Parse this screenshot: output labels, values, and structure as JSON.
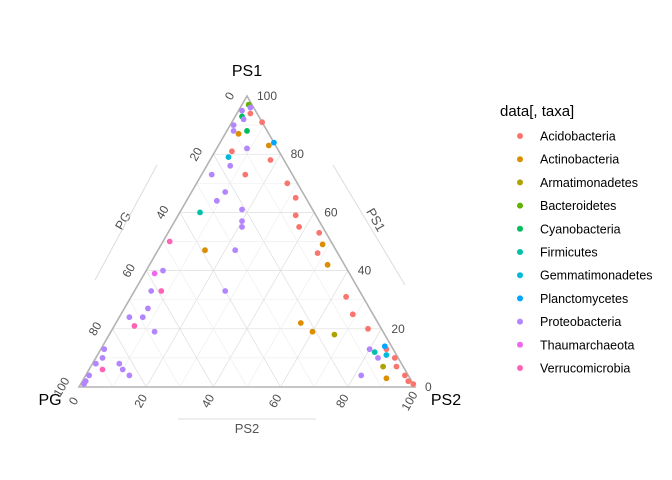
{
  "chart_data": {
    "type": "scatter",
    "subtype": "ternary",
    "vertices": {
      "top": "PS1",
      "left": "PG",
      "right": "PS2"
    },
    "axis_titles": {
      "left_side": "PG",
      "right_side": "PS1",
      "bottom": "PS2"
    },
    "ticks": [
      0,
      20,
      40,
      60,
      80,
      100
    ],
    "grid": true,
    "legend": {
      "title": "data[, taxa]",
      "placement": "right",
      "entries": [
        {
          "name": "Acidobacteria",
          "color": "#F8766D"
        },
        {
          "name": "Actinobacteria",
          "color": "#DB8E00"
        },
        {
          "name": "Armatimonadetes",
          "color": "#AEA200"
        },
        {
          "name": "Bacteroidetes",
          "color": "#64B200"
        },
        {
          "name": "Cyanobacteria",
          "color": "#00BD5C"
        },
        {
          "name": "Firmicutes",
          "color": "#00C1A7"
        },
        {
          "name": "Gemmatimonadetes",
          "color": "#00BADE"
        },
        {
          "name": "Planctomycetes",
          "color": "#00A6FF"
        },
        {
          "name": "Proteobacteria",
          "color": "#B385FF"
        },
        {
          "name": "Thaumarchaeota",
          "color": "#EF67EB"
        },
        {
          "name": "Verrucomicrobia",
          "color": "#FF63B6"
        }
      ]
    },
    "series": [
      {
        "name": "Acidobacteria",
        "color": "#F8766D",
        "points": [
          {
            "PS1": 94,
            "PS2": 4
          },
          {
            "PS1": 91,
            "PS2": 9
          },
          {
            "PS1": 81,
            "PS2": 5
          },
          {
            "PS1": 78,
            "PS2": 18
          },
          {
            "PS1": 73,
            "PS2": 13
          },
          {
            "PS1": 70,
            "PS2": 27
          },
          {
            "PS1": 65,
            "PS2": 32
          },
          {
            "PS1": 59,
            "PS2": 35
          },
          {
            "PS1": 53,
            "PS2": 45
          },
          {
            "PS1": 46,
            "PS2": 48
          },
          {
            "PS1": 31,
            "PS2": 64
          },
          {
            "PS1": 25,
            "PS2": 69
          },
          {
            "PS1": 13,
            "PS2": 85
          },
          {
            "PS1": 10,
            "PS2": 89
          },
          {
            "PS1": 7,
            "PS2": 91
          },
          {
            "PS1": 4,
            "PS2": 95
          },
          {
            "PS1": 2,
            "PS2": 97
          },
          {
            "PS1": 1,
            "PS2": 99
          },
          {
            "PS1": 55,
            "PS2": 38
          },
          {
            "PS1": 20,
            "PS2": 76
          }
        ]
      },
      {
        "name": "Actinobacteria",
        "color": "#DB8E00",
        "points": [
          {
            "PS1": 87,
            "PS2": 4
          },
          {
            "PS1": 83,
            "PS2": 15
          },
          {
            "PS1": 47,
            "PS2": 14
          },
          {
            "PS1": 49,
            "PS2": 48
          },
          {
            "PS1": 42,
            "PS2": 53
          },
          {
            "PS1": 22,
            "PS2": 55
          },
          {
            "PS1": 19,
            "PS2": 60
          },
          {
            "PS1": 3,
            "PS2": 90
          }
        ]
      },
      {
        "name": "Armatimonadetes",
        "color": "#AEA200",
        "points": [
          {
            "PS1": 18,
            "PS2": 67
          },
          {
            "PS1": 7,
            "PS2": 87
          }
        ]
      },
      {
        "name": "Bacteroidetes",
        "color": "#64B200",
        "points": [
          {
            "PS1": 97,
            "PS2": 2
          }
        ]
      },
      {
        "name": "Cyanobacteria",
        "color": "#00BD5C",
        "points": [
          {
            "PS1": 93,
            "PS2": 2
          },
          {
            "PS1": 88,
            "PS2": 6
          }
        ]
      },
      {
        "name": "Firmicutes",
        "color": "#00C1A7",
        "points": [
          {
            "PS1": 60,
            "PS2": 6
          },
          {
            "PS1": 12,
            "PS2": 82
          }
        ]
      },
      {
        "name": "Gemmatimonadetes",
        "color": "#00BADE",
        "points": [
          {
            "PS1": 79,
            "PS2": 5
          },
          {
            "PS1": 11,
            "PS2": 86
          }
        ]
      },
      {
        "name": "Planctomycetes",
        "color": "#00A6FF",
        "points": [
          {
            "PS1": 84,
            "PS2": 16
          },
          {
            "PS1": 14,
            "PS2": 84
          }
        ]
      },
      {
        "name": "Proteobacteria",
        "color": "#B385FF",
        "points": [
          {
            "PS1": 96,
            "PS2": 3
          },
          {
            "PS1": 95,
            "PS2": 1
          },
          {
            "PS1": 92,
            "PS2": 3
          },
          {
            "PS1": 90,
            "PS2": 1
          },
          {
            "PS1": 88,
            "PS2": 2
          },
          {
            "PS1": 82,
            "PS2": 9
          },
          {
            "PS1": 76,
            "PS2": 7
          },
          {
            "PS1": 73,
            "PS2": 3
          },
          {
            "PS1": 67,
            "PS2": 10
          },
          {
            "PS1": 64,
            "PS2": 9
          },
          {
            "PS1": 61,
            "PS2": 18
          },
          {
            "PS1": 57,
            "PS2": 20
          },
          {
            "PS1": 55,
            "PS2": 21
          },
          {
            "PS1": 47,
            "PS2": 23
          },
          {
            "PS1": 40,
            "PS2": 5
          },
          {
            "PS1": 33,
            "PS2": 27
          },
          {
            "PS1": 33,
            "PS2": 5
          },
          {
            "PS1": 27,
            "PS2": 7
          },
          {
            "PS1": 24,
            "PS2": 7
          },
          {
            "PS1": 24,
            "PS2": 3
          },
          {
            "PS1": 19,
            "PS2": 13
          },
          {
            "PS1": 10,
            "PS2": 2
          },
          {
            "PS1": 8,
            "PS2": 8
          },
          {
            "PS1": 6,
            "PS2": 10
          },
          {
            "PS1": 4,
            "PS2": 13
          },
          {
            "PS1": 2,
            "PS2": 1
          },
          {
            "PS1": 1,
            "PS2": 1
          },
          {
            "PS1": 4,
            "PS2": 1
          },
          {
            "PS1": 8,
            "PS2": 1
          },
          {
            "PS1": 13,
            "PS2": 1
          },
          {
            "PS1": 4,
            "PS2": 82
          },
          {
            "PS1": 10,
            "PS2": 84
          },
          {
            "PS1": 13,
            "PS2": 80
          }
        ]
      },
      {
        "name": "Thaumarchaeota",
        "color": "#EF67EB",
        "points": [
          {
            "PS1": 39,
            "PS2": 3
          }
        ]
      },
      {
        "name": "Verrucomicrobia",
        "color": "#FF63B6",
        "points": [
          {
            "PS1": 50,
            "PS2": 2
          },
          {
            "PS1": 33,
            "PS2": 8
          },
          {
            "PS1": 21,
            "PS2": 6
          },
          {
            "PS1": 6,
            "PS2": 4
          }
        ]
      }
    ]
  }
}
